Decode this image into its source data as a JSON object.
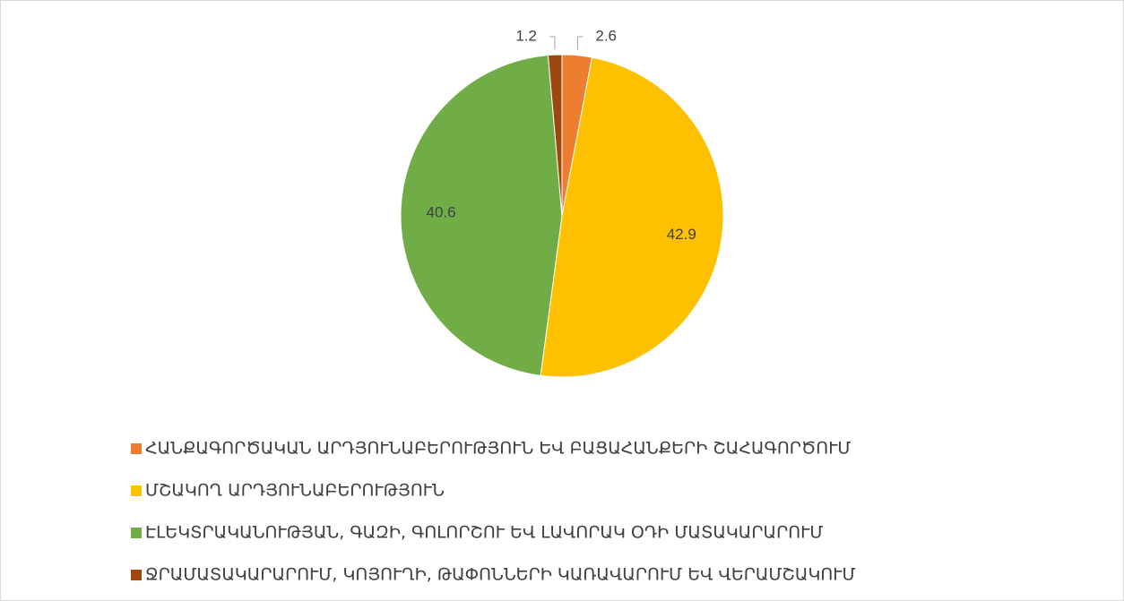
{
  "chart_data": {
    "type": "pie",
    "categories": [
      "ՀԱՆՔԱԳՈՐԾԱԿԱՆ ԱՐԴՅՈՒՆԱԲԵՐՈՒԹՅՈՒՆ ԵՎ ԲԱՑԱՀԱՆՔԵՐԻ ՇԱՀԱԳՈՐԾՈՒՄ",
      "ՄՇԱԿՈՂ ԱՐԴՅՈՒՆԱԲԵՐՈՒԹՅՈՒՆ",
      "ԷԼԵԿՏՐԱԿԱՆՈՒԹՅԱՆ, ԳԱԶԻ, ԳՈԼՈՐՇՈՒ ԵՎ ԼԱՎՈՐԱԿ ՕԴԻ ՄԱՏԱԿԱՐԱՐՈՒՄ",
      "ՋՐԱՄԱՏԱԿԱՐԱՐՈՒՄ, ԿՈՅՈՒՂԻ, ԹԱՓՈՆՆԵՐԻ ԿԱՌԱՎԱՐՈՒՄ ԵՎ ՎԵՐԱՄՇԱԿՈՒՄ"
    ],
    "values": [
      2.6,
      42.9,
      40.6,
      1.2
    ],
    "colors": [
      "#ed7d31",
      "#ffc000",
      "#70ad47",
      "#9e480e"
    ],
    "legend": "bottom"
  }
}
